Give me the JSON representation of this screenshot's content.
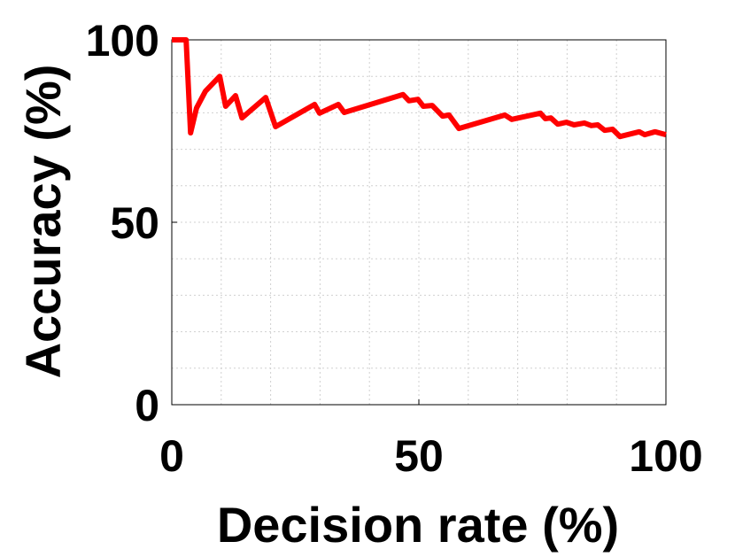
{
  "chart_data": {
    "type": "line",
    "xlabel": "Decision rate (%)",
    "ylabel": "Accuracy (%)",
    "xlim": [
      0,
      100
    ],
    "ylim": [
      0,
      100
    ],
    "xticks": [
      0,
      50,
      100
    ],
    "yticks": [
      0,
      50,
      100
    ],
    "xminor": [
      10,
      20,
      30,
      40,
      60,
      70,
      80,
      90
    ],
    "yminor": [
      10,
      20,
      30,
      40,
      60,
      70,
      80,
      90
    ],
    "grid": true,
    "series": [
      {
        "color": "#ff0000",
        "x": [
          0,
          2.9,
          3.8,
          5.0,
          6.8,
          9.7,
          10.9,
          12.9,
          14.2,
          19.0,
          21.0,
          28.9,
          29.9,
          33.7,
          34.9,
          46.8,
          48.0,
          49.8,
          50.9,
          52.7,
          54.8,
          56.1,
          58.1,
          67.4,
          68.8,
          74.6,
          75.6,
          76.7,
          78.1,
          79.9,
          81.4,
          83.5,
          84.9,
          86.2,
          87.6,
          89.2,
          90.7,
          94.6,
          95.7,
          97.8,
          100
        ],
        "values": [
          100,
          100,
          74.5,
          81.3,
          85.9,
          90,
          81.8,
          84.7,
          78.6,
          84.2,
          76.2,
          82.3,
          79.9,
          82.3,
          80.1,
          85,
          83.3,
          83.7,
          81.8,
          82,
          79.1,
          79.4,
          75.7,
          79.4,
          78.2,
          79.9,
          78.4,
          78.6,
          76.9,
          77.4,
          76.7,
          77.2,
          76.5,
          76.7,
          75.2,
          75.5,
          73.5,
          74.8,
          74,
          74.8,
          74
        ]
      }
    ]
  }
}
